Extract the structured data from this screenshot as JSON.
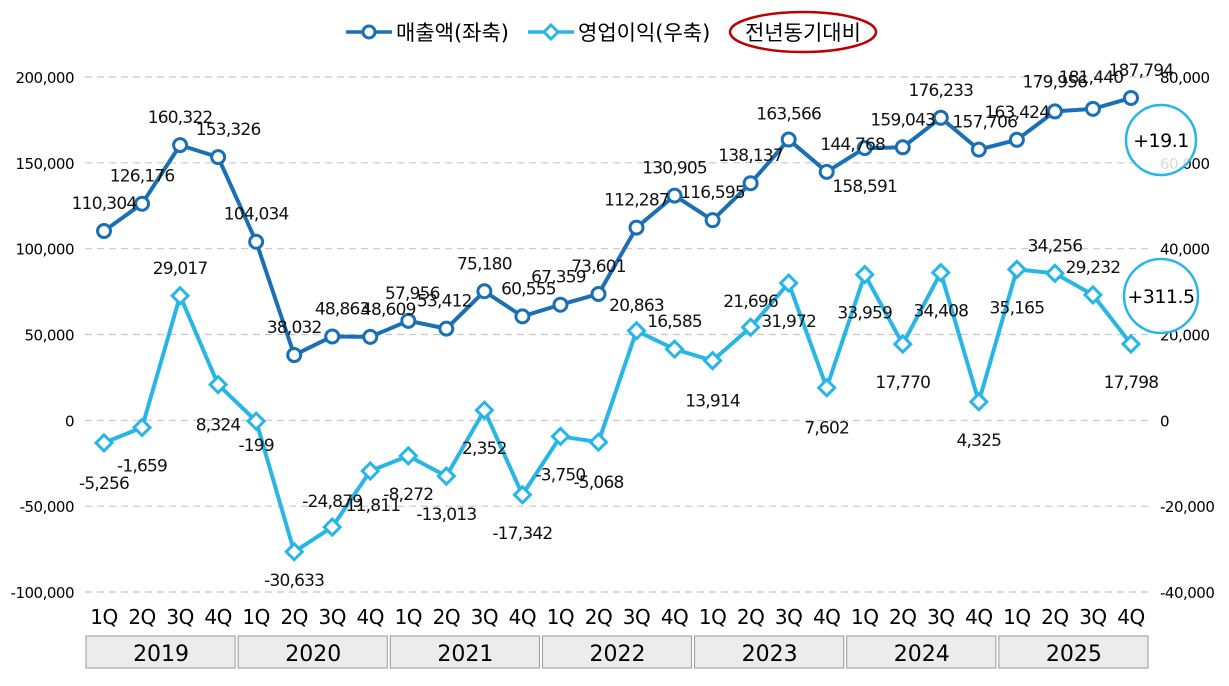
{
  "chart_data": {
    "type": "line",
    "legend": {
      "placement": "top-center",
      "sales_label": "매출액(좌축)",
      "op_label": "영업이익(우축)",
      "yoy_label": "전년동기대비"
    },
    "years": [
      "2019",
      "2020",
      "2021",
      "2022",
      "2023",
      "2024",
      "2025"
    ],
    "quarters": [
      "1Q",
      "2Q",
      "3Q",
      "4Q"
    ],
    "left_axis": {
      "min": -100000,
      "max": 200000,
      "ticks": [
        "-100,000",
        "-50,000",
        "0",
        "50,000",
        "100,000",
        "150,000",
        "200,000"
      ]
    },
    "right_axis": {
      "min": -40000,
      "max": 80000,
      "ticks": [
        "-40,000",
        "-20,000",
        "0",
        "20,000",
        "40,000",
        "60,000",
        "80,000"
      ]
    },
    "grid": true,
    "series": [
      {
        "name": "매출액(좌축)",
        "axis": "left",
        "color": "#1b6fb5",
        "values": [
          110304,
          126176,
          160322,
          153326,
          104034,
          38032,
          48863,
          48609,
          57956,
          53412,
          75180,
          60555,
          67359,
          73601,
          112287,
          130905,
          116595,
          138137,
          163566,
          144768,
          158591,
          159043,
          176233,
          157706,
          163424,
          179956,
          181440,
          187794
        ],
        "labels": [
          "110,304",
          "126,176",
          "160,322",
          "153,326",
          "104,034",
          "38,032",
          "48,863",
          "48,609",
          "57,956",
          "53,412",
          "75,180",
          "60,555",
          "67,359",
          "73,601",
          "112,287",
          "130,905",
          "116,595",
          "138,137",
          "163,566",
          "144,768",
          "158,591",
          "159,043",
          "176,233",
          "157,706",
          "163,424",
          "179,956",
          "181,440",
          "187,794"
        ]
      },
      {
        "name": "영업이익(우축)",
        "axis": "right",
        "color": "#27b6e6",
        "values": [
          -5256,
          -1659,
          29017,
          8324,
          -199,
          -30633,
          -24879,
          -11811,
          -8272,
          -13013,
          2352,
          -17342,
          -3750,
          -5068,
          20863,
          16585,
          13914,
          21696,
          31972,
          7602,
          33959,
          17770,
          34408,
          4325,
          35165,
          34256,
          29232,
          17798
        ],
        "labels": [
          "-5,256",
          "-1,659",
          "29,017",
          "8,324",
          "-199",
          "-30,633",
          "-24,879",
          "-11,811",
          "-8,272",
          "-13,013",
          "2,352",
          "-17,342",
          "-3,750",
          "-5,068",
          "20,863",
          "16,585",
          "13,914",
          "21,696",
          "31,972",
          "7,602",
          "33,959",
          "17,770",
          "34,408",
          "4,325",
          "35,165",
          "34,256",
          "29,232",
          "17,798"
        ]
      }
    ],
    "yoy_annotations": [
      {
        "series": "매출액(좌축)",
        "text": "+19.1"
      },
      {
        "series": "영업이익(우축)",
        "text": "+311.5"
      }
    ],
    "colors": {
      "grid": "#c8c8c8",
      "legend_ellipse": "#c00000",
      "year_box": "#ececec"
    }
  }
}
